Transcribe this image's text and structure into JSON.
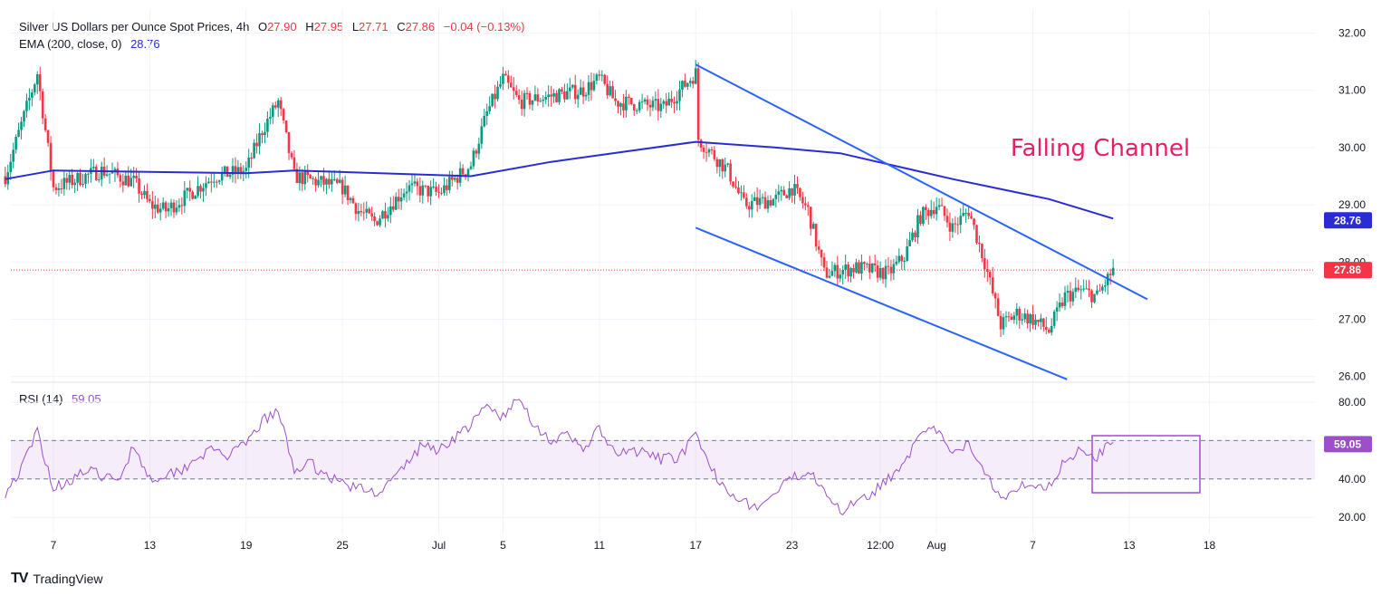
{
  "header": {
    "symbol": "Silver US Dollars per Ounce Spot Prices, 4h",
    "o_label": "O",
    "o_value": "27.90",
    "h_label": "H",
    "h_value": "27.95",
    "l_label": "L",
    "l_value": "27.71",
    "c_label": "C",
    "c_value": "27.86",
    "change": "−0.04 (−0.13%)",
    "ema_label": "EMA (200, close, 0)",
    "ema_value": "28.76",
    "rsi_label": "RSI (14)",
    "rsi_value": "59.05"
  },
  "branding": {
    "logo": "TV",
    "name": "TradingView"
  },
  "colors": {
    "up": "#089981",
    "down": "#f23645",
    "ema": "#2b2bd6",
    "channel": "#2962ff",
    "rsi": "#9c4fc9",
    "annotation": "#e91e63"
  },
  "chart_data": [
    {
      "type": "candlestick",
      "title": "Silver US Dollars per Ounce Spot Prices, 4h",
      "x_ticks": [
        "7",
        "13",
        "19",
        "25",
        "Jul",
        "5",
        "11",
        "17",
        "23",
        "12:00",
        "Aug",
        "7",
        "13",
        "18"
      ],
      "y_ticks": [
        "26.00",
        "27.00",
        "28.00",
        "29.00",
        "30.00",
        "31.00",
        "32.00"
      ],
      "ylim": [
        25.9,
        32.2
      ],
      "grid": true,
      "last_price": "27.86",
      "ema_last": "28.76",
      "annotation": "Falling Channel",
      "anchors": [
        {
          "date": "Jun 4",
          "close": 29.5
        },
        {
          "date": "Jun 6",
          "close": 31.3
        },
        {
          "date": "Jun 7",
          "close": 29.3
        },
        {
          "date": "Jun 10",
          "close": 29.6
        },
        {
          "date": "Jun 12",
          "close": 29.4
        },
        {
          "date": "Jun 13",
          "close": 29.0
        },
        {
          "date": "Jun 14",
          "close": 28.9
        },
        {
          "date": "Jun 17",
          "close": 29.5
        },
        {
          "date": "Jun 19",
          "close": 29.6
        },
        {
          "date": "Jun 20",
          "close": 30.3
        },
        {
          "date": "Jun 21",
          "close": 30.8
        },
        {
          "date": "Jun 22",
          "close": 29.5
        },
        {
          "date": "Jun 25",
          "close": 29.3
        },
        {
          "date": "Jun 26",
          "close": 28.9
        },
        {
          "date": "Jun 27",
          "close": 28.7
        },
        {
          "date": "Jun 29",
          "close": 29.3
        },
        {
          "date": "Jul 1",
          "close": 29.2
        },
        {
          "date": "Jul 3",
          "close": 29.7
        },
        {
          "date": "Jul 4",
          "close": 30.6
        },
        {
          "date": "Jul 5",
          "close": 31.2
        },
        {
          "date": "Jul 6",
          "close": 30.8
        },
        {
          "date": "Jul 8",
          "close": 30.9
        },
        {
          "date": "Jul 10",
          "close": 31.0
        },
        {
          "date": "Jul 11",
          "close": 31.2
        },
        {
          "date": "Jul 12",
          "close": 30.8
        },
        {
          "date": "Jul 15",
          "close": 30.7
        },
        {
          "date": "Jul 17",
          "close": 31.3
        },
        {
          "date": "Jul 17",
          "close": 30.2
        },
        {
          "date": "Jul 19",
          "close": 29.6
        },
        {
          "date": "Jul 20",
          "close": 29.0
        },
        {
          "date": "Jul 22",
          "close": 29.1
        },
        {
          "date": "Jul 23",
          "close": 29.3
        },
        {
          "date": "Jul 24",
          "close": 28.9
        },
        {
          "date": "Jul 25",
          "close": 27.8
        },
        {
          "date": "Jul 27",
          "close": 27.9
        },
        {
          "date": "Jul 29",
          "close": 27.8
        },
        {
          "date": "Jul 30",
          "close": 28.1
        },
        {
          "date": "Jul 31",
          "close": 28.8
        },
        {
          "date": "Aug 1",
          "close": 29.0
        },
        {
          "date": "Aug 2",
          "close": 28.6
        },
        {
          "date": "Aug 3",
          "close": 28.9
        },
        {
          "date": "Aug 4",
          "close": 28.0
        },
        {
          "date": "Aug 5",
          "close": 26.9
        },
        {
          "date": "Aug 6",
          "close": 27.1
        },
        {
          "date": "Aug 7",
          "close": 27.0
        },
        {
          "date": "Aug 8",
          "close": 26.8
        },
        {
          "date": "Aug 9",
          "close": 27.4
        },
        {
          "date": "Aug 10",
          "close": 27.5
        },
        {
          "date": "Aug 11",
          "close": 27.4
        },
        {
          "date": "Aug 12",
          "close": 27.86
        }
      ],
      "ema_points": [
        {
          "date": "Jun 4",
          "value": 29.45
        },
        {
          "date": "Jun 7",
          "value": 29.6
        },
        {
          "date": "Jun 19",
          "value": 29.55
        },
        {
          "date": "Jun 22",
          "value": 29.6
        },
        {
          "date": "Jul 3",
          "value": 29.5
        },
        {
          "date": "Jul 8",
          "value": 29.75
        },
        {
          "date": "Jul 17",
          "value": 30.1
        },
        {
          "date": "Jul 22",
          "value": 30.0
        },
        {
          "date": "Jul 26",
          "value": 29.9
        },
        {
          "date": "Aug 2",
          "value": 29.45
        },
        {
          "date": "Aug 8",
          "value": 29.1
        },
        {
          "date": "Aug 12",
          "value": 28.76
        }
      ],
      "channel_lines": [
        {
          "name": "upper",
          "from": {
            "date": "Jul 17",
            "value": 31.45
          },
          "to": {
            "date": "Aug 13",
            "value": 27.35
          }
        },
        {
          "name": "lower",
          "from": {
            "date": "Jul 17",
            "value": 28.6
          },
          "to": {
            "date": "Aug 8",
            "value": 25.95
          }
        }
      ]
    },
    {
      "type": "line",
      "title": "RSI (14)",
      "y_ticks": [
        "20.00",
        "40.00",
        "60.00",
        "80.00"
      ],
      "ylim": [
        15,
        85
      ],
      "band": [
        40,
        60
      ],
      "last_value": "59.05",
      "points": [
        {
          "date": "Jun 4",
          "value": 33
        },
        {
          "date": "Jun 5",
          "value": 45
        },
        {
          "date": "Jun 6",
          "value": 65
        },
        {
          "date": "Jun 7",
          "value": 35
        },
        {
          "date": "Jun 9",
          "value": 44
        },
        {
          "date": "Jun 10",
          "value": 42
        },
        {
          "date": "Jun 11",
          "value": 38
        },
        {
          "date": "Jun 12",
          "value": 58
        },
        {
          "date": "Jun 13",
          "value": 40
        },
        {
          "date": "Jun 15",
          "value": 45
        },
        {
          "date": "Jun 16",
          "value": 52
        },
        {
          "date": "Jun 17",
          "value": 55
        },
        {
          "date": "Jun 18",
          "value": 52
        },
        {
          "date": "Jun 19",
          "value": 58
        },
        {
          "date": "Jun 20",
          "value": 70
        },
        {
          "date": "Jun 21",
          "value": 75
        },
        {
          "date": "Jun 22",
          "value": 45
        },
        {
          "date": "Jun 23",
          "value": 48
        },
        {
          "date": "Jun 24",
          "value": 42
        },
        {
          "date": "Jun 25",
          "value": 38
        },
        {
          "date": "Jun 26",
          "value": 35
        },
        {
          "date": "Jun 27",
          "value": 33
        },
        {
          "date": "Jun 28",
          "value": 38
        },
        {
          "date": "Jun 29",
          "value": 48
        },
        {
          "date": "Jun 30",
          "value": 58
        },
        {
          "date": "Jul 1",
          "value": 55
        },
        {
          "date": "Jul 2",
          "value": 62
        },
        {
          "date": "Jul 3",
          "value": 68
        },
        {
          "date": "Jul 4",
          "value": 78
        },
        {
          "date": "Jul 5",
          "value": 72
        },
        {
          "date": "Jul 6",
          "value": 82
        },
        {
          "date": "Jul 7",
          "value": 68
        },
        {
          "date": "Jul 8",
          "value": 60
        },
        {
          "date": "Jul 9",
          "value": 62
        },
        {
          "date": "Jul 10",
          "value": 56
        },
        {
          "date": "Jul 11",
          "value": 66
        },
        {
          "date": "Jul 12",
          "value": 52
        },
        {
          "date": "Jul 13",
          "value": 55
        },
        {
          "date": "Jul 15",
          "value": 50
        },
        {
          "date": "Jul 16",
          "value": 52
        },
        {
          "date": "Jul 17",
          "value": 62
        },
        {
          "date": "Jul 18",
          "value": 44
        },
        {
          "date": "Jul 19",
          "value": 35
        },
        {
          "date": "Jul 20",
          "value": 28
        },
        {
          "date": "Jul 21",
          "value": 25
        },
        {
          "date": "Jul 22",
          "value": 33
        },
        {
          "date": "Jul 23",
          "value": 40
        },
        {
          "date": "Jul 24",
          "value": 45
        },
        {
          "date": "Jul 25",
          "value": 36
        },
        {
          "date": "Jul 26",
          "value": 22
        },
        {
          "date": "Jul 27",
          "value": 30
        },
        {
          "date": "Jul 28",
          "value": 33
        },
        {
          "date": "Jul 29",
          "value": 40
        },
        {
          "date": "Jul 30",
          "value": 50
        },
        {
          "date": "Jul 31",
          "value": 62
        },
        {
          "date": "Aug 1",
          "value": 66
        },
        {
          "date": "Aug 2",
          "value": 52
        },
        {
          "date": "Aug 3",
          "value": 58
        },
        {
          "date": "Aug 4",
          "value": 45
        },
        {
          "date": "Aug 5",
          "value": 30
        },
        {
          "date": "Aug 6",
          "value": 36
        },
        {
          "date": "Aug 7",
          "value": 38
        },
        {
          "date": "Aug 8",
          "value": 36
        },
        {
          "date": "Aug 9",
          "value": 50
        },
        {
          "date": "Aug 10",
          "value": 55
        },
        {
          "date": "Aug 11",
          "value": 52
        },
        {
          "date": "Aug 12",
          "value": 59.05
        }
      ]
    }
  ]
}
